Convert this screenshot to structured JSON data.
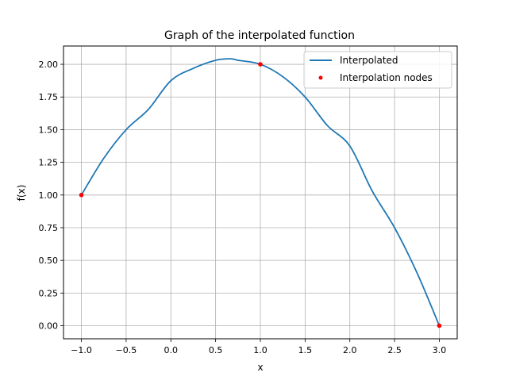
{
  "chart_data": {
    "type": "line",
    "title": "Graph of the interpolated function",
    "xlabel": "x",
    "ylabel": "f(x)",
    "xlim": [
      -1.2,
      3.2
    ],
    "ylim": [
      -0.1,
      2.14
    ],
    "x_ticks": [
      -1.0,
      -0.5,
      0.0,
      0.5,
      1.0,
      1.5,
      2.0,
      2.5,
      3.0
    ],
    "x_tick_labels": [
      "−1.0",
      "−0.5",
      "0.0",
      "0.5",
      "1.0",
      "1.5",
      "2.0",
      "2.5",
      "3.0"
    ],
    "y_ticks": [
      0.0,
      0.25,
      0.5,
      0.75,
      1.0,
      1.25,
      1.5,
      1.75,
      2.0
    ],
    "y_tick_labels": [
      "0.00",
      "0.25",
      "0.50",
      "0.75",
      "1.00",
      "1.25",
      "1.50",
      "1.75",
      "2.00"
    ],
    "grid": true,
    "legend_position": "top-right",
    "series": [
      {
        "name": "Interpolated",
        "kind": "line",
        "color": "#1f77b4",
        "x": [
          -1.0,
          -0.75,
          -0.5,
          -0.25,
          0.0,
          0.25,
          0.5,
          0.667,
          0.75,
          1.0,
          1.25,
          1.5,
          1.75,
          2.0,
          2.25,
          2.5,
          2.75,
          3.0
        ],
        "y": [
          1.0,
          1.281,
          1.5,
          1.656,
          1.875,
          1.969,
          2.031,
          2.042,
          2.031,
          2.0,
          1.906,
          1.75,
          1.531,
          1.375,
          1.031,
          0.75,
          0.406,
          0.0
        ]
      },
      {
        "name": "Interpolation nodes",
        "kind": "points",
        "color": "#ff0000",
        "x": [
          -1.0,
          1.0,
          3.0
        ],
        "y": [
          1.0,
          2.0,
          0.0
        ]
      }
    ]
  }
}
